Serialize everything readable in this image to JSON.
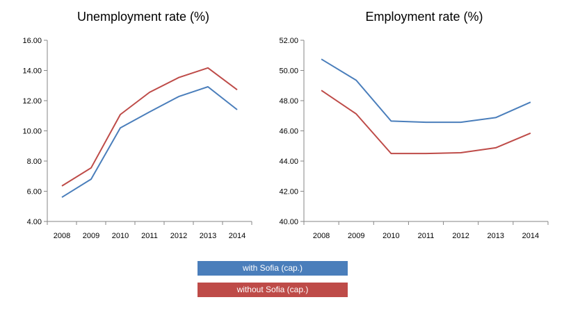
{
  "chart_data": [
    {
      "type": "line",
      "title": "Unemployment rate (%)",
      "categories": [
        "2008",
        "2009",
        "2010",
        "2011",
        "2012",
        "2013",
        "2014"
      ],
      "ylim": [
        4,
        16
      ],
      "ytick_step": 2,
      "ytick_labels": [
        "4.00",
        "6.00",
        "8.00",
        "10.00",
        "12.00",
        "14.00",
        "16.00"
      ],
      "grid": false,
      "series": [
        {
          "name": "with Sofia (cap.)",
          "color": "#4a7ebb",
          "values": [
            5.6,
            6.8,
            10.2,
            11.25,
            12.27,
            12.92,
            11.4
          ]
        },
        {
          "name": "without Sofia (cap.)",
          "color": "#be4b48",
          "values": [
            6.35,
            7.55,
            11.08,
            12.55,
            13.53,
            14.17,
            12.72
          ]
        }
      ]
    },
    {
      "type": "line",
      "title": "Employment rate (%)",
      "categories": [
        "2008",
        "2009",
        "2010",
        "2011",
        "2012",
        "2013",
        "2014"
      ],
      "ylim": [
        40,
        52
      ],
      "ytick_step": 2,
      "ytick_labels": [
        "40.00",
        "42.00",
        "44.00",
        "46.00",
        "48.00",
        "50.00",
        "52.00"
      ],
      "grid": false,
      "series": [
        {
          "name": "with Sofia (cap.)",
          "color": "#4a7ebb",
          "values": [
            50.75,
            49.35,
            46.65,
            46.57,
            46.57,
            46.88,
            47.9
          ]
        },
        {
          "name": "without Sofia (cap.)",
          "color": "#be4b48",
          "values": [
            48.68,
            47.12,
            44.5,
            44.5,
            44.55,
            44.88,
            45.85
          ]
        }
      ]
    }
  ],
  "legend": {
    "placement": "bottom-center",
    "entries": [
      {
        "label": "with Sofia (cap.)",
        "color": "#4a7ebb"
      },
      {
        "label": "without Sofia (cap.)",
        "color": "#be4b48"
      }
    ]
  }
}
